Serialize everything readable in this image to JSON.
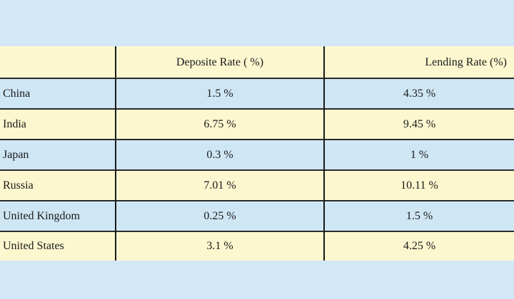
{
  "table": {
    "headers": [
      "",
      "Deposite Rate ( %)",
      "Lending Rate (%)"
    ],
    "rows": [
      {
        "country": "China",
        "deposit": "1.5 %",
        "lending": "4.35 %"
      },
      {
        "country": "India",
        "deposit": "6.75 %",
        "lending": "9.45 %"
      },
      {
        "country": "Japan",
        "deposit": "0.3 %",
        "lending": "1 %"
      },
      {
        "country": "Russia",
        "deposit": "7.01 %",
        "lending": "10.11 %"
      },
      {
        "country": "United Kingdom",
        "deposit": "0.25 %",
        "lending": "1.5 %"
      },
      {
        "country": "United States",
        "deposit": "3.1 %",
        "lending": "4.25 %"
      }
    ]
  },
  "colors": {
    "background": "#d2e8f6",
    "row_cream": "#fcf7cf",
    "row_blue": "#cfe6f5",
    "rule": "#1a1a1a"
  }
}
